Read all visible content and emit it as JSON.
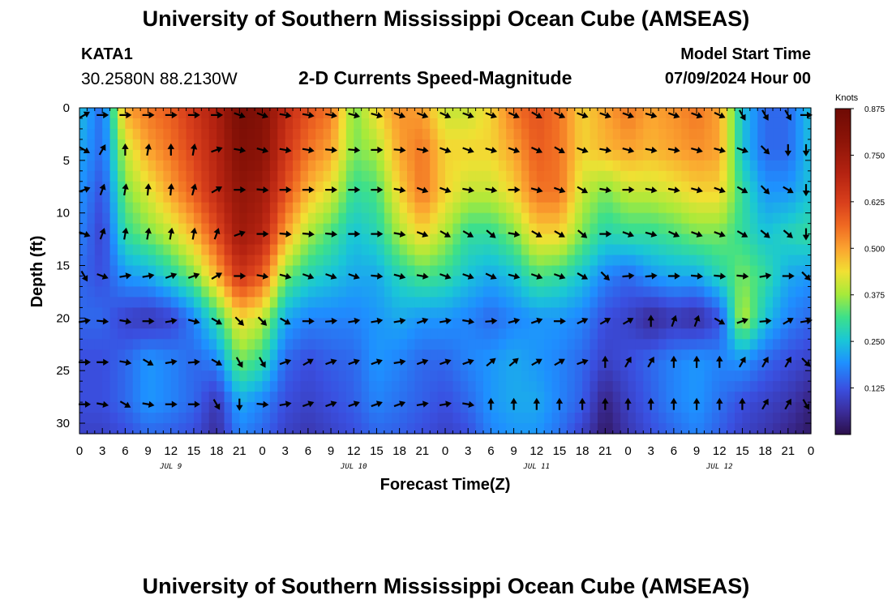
{
  "header": {
    "title": "University of Southern Mississippi Ocean Cube (AMSEAS)",
    "station": "KATA1",
    "coords": "30.2580N  88.2130W",
    "subtitle": "2-D Currents Speed-Magnitude",
    "model_start_label": "Model Start Time",
    "model_start_value": "07/09/2024 Hour 00"
  },
  "footer": {
    "title": "University of Southern Mississippi Ocean Cube (AMSEAS)"
  },
  "chart_data": {
    "type": "heatmap",
    "title": "2-D Currents Speed-Magnitude",
    "xlabel": "Forecast Time(Z)",
    "ylabel": "Depth (ft)",
    "x_range_hours": [
      0,
      96
    ],
    "y_range": [
      0,
      31
    ],
    "x_tick_labels": [
      "0",
      "3",
      "6",
      "9",
      "12",
      "15",
      "18",
      "21",
      "0",
      "3",
      "6",
      "9",
      "12",
      "15",
      "18",
      "21",
      "0",
      "3",
      "6",
      "9",
      "12",
      "15",
      "18",
      "21",
      "0",
      "3",
      "6",
      "9",
      "12",
      "15",
      "18",
      "21",
      "0"
    ],
    "y_ticks": [
      0,
      5,
      10,
      15,
      20,
      25,
      30
    ],
    "date_labels": [
      {
        "text": "JUL 9",
        "hour": 12
      },
      {
        "text": "JUL 10",
        "hour": 36
      },
      {
        "text": "JUL 11",
        "hour": 60
      },
      {
        "text": "JUL 12",
        "hour": 84
      }
    ],
    "colorbar": {
      "label": "Knots",
      "range": [
        0,
        0.875
      ],
      "ticks": [
        "0.875",
        "0.750",
        "0.625",
        "0.500",
        "0.375",
        "0.250",
        "0.125"
      ],
      "tick_values": [
        0.875,
        0.75,
        0.625,
        0.5,
        0.375,
        0.25,
        0.125
      ]
    },
    "arrow_depths": [
      0.3,
      4,
      7.8,
      12,
      16,
      20.3,
      24.2,
      28.2
    ],
    "arrow_hours": [
      0,
      3,
      6,
      9,
      12,
      15,
      18,
      21,
      24,
      27,
      30,
      33,
      36,
      39,
      42,
      45,
      48,
      51,
      54,
      57,
      60,
      63,
      66,
      69,
      72,
      75,
      78,
      81,
      84,
      87,
      90,
      93,
      96
    ],
    "speed_columns_hours": [
      0,
      3,
      6,
      9,
      12,
      15,
      18,
      21,
      24,
      27,
      30,
      33,
      36,
      39,
      42,
      45,
      48,
      51,
      54,
      57,
      60,
      63,
      66,
      69,
      72,
      75,
      78,
      81,
      84,
      87,
      90,
      93,
      96
    ],
    "speed_rows_depth": [
      0,
      4,
      8,
      12,
      16,
      20,
      24,
      28,
      31
    ],
    "speed": [
      [
        0.25,
        0.15,
        0.5,
        0.55,
        0.58,
        0.65,
        0.72,
        0.85,
        0.82,
        0.68,
        0.6,
        0.55,
        0.35,
        0.45,
        0.52,
        0.5,
        0.4,
        0.4,
        0.45,
        0.55,
        0.6,
        0.55,
        0.45,
        0.5,
        0.55,
        0.5,
        0.52,
        0.55,
        0.5,
        0.25,
        0.15,
        0.15,
        0.25
      ],
      [
        0.22,
        0.15,
        0.4,
        0.5,
        0.55,
        0.62,
        0.7,
        0.82,
        0.8,
        0.65,
        0.55,
        0.5,
        0.35,
        0.38,
        0.5,
        0.55,
        0.45,
        0.45,
        0.45,
        0.5,
        0.58,
        0.55,
        0.45,
        0.48,
        0.5,
        0.48,
        0.5,
        0.52,
        0.5,
        0.25,
        0.15,
        0.15,
        0.25
      ],
      [
        0.2,
        0.12,
        0.35,
        0.42,
        0.5,
        0.58,
        0.68,
        0.78,
        0.75,
        0.6,
        0.48,
        0.42,
        0.3,
        0.32,
        0.45,
        0.55,
        0.45,
        0.4,
        0.4,
        0.45,
        0.55,
        0.55,
        0.4,
        0.35,
        0.4,
        0.4,
        0.42,
        0.45,
        0.45,
        0.3,
        0.2,
        0.2,
        0.25
      ],
      [
        0.18,
        0.1,
        0.3,
        0.35,
        0.4,
        0.48,
        0.6,
        0.75,
        0.7,
        0.5,
        0.38,
        0.32,
        0.25,
        0.28,
        0.38,
        0.45,
        0.38,
        0.3,
        0.3,
        0.35,
        0.45,
        0.45,
        0.35,
        0.28,
        0.3,
        0.3,
        0.32,
        0.35,
        0.35,
        0.3,
        0.25,
        0.28,
        0.3
      ],
      [
        0.15,
        0.12,
        0.2,
        0.22,
        0.28,
        0.35,
        0.48,
        0.65,
        0.58,
        0.35,
        0.28,
        0.25,
        0.22,
        0.22,
        0.28,
        0.32,
        0.3,
        0.25,
        0.22,
        0.25,
        0.32,
        0.3,
        0.25,
        0.18,
        0.15,
        0.2,
        0.22,
        0.22,
        0.28,
        0.35,
        0.3,
        0.22,
        0.2
      ],
      [
        0.15,
        0.15,
        0.1,
        0.08,
        0.1,
        0.18,
        0.3,
        0.45,
        0.4,
        0.22,
        0.18,
        0.18,
        0.18,
        0.2,
        0.22,
        0.2,
        0.2,
        0.18,
        0.15,
        0.18,
        0.2,
        0.2,
        0.18,
        0.12,
        0.1,
        0.05,
        0.08,
        0.06,
        0.12,
        0.4,
        0.25,
        0.18,
        0.15
      ],
      [
        0.12,
        0.12,
        0.15,
        0.2,
        0.18,
        0.15,
        0.18,
        0.35,
        0.3,
        0.15,
        0.12,
        0.14,
        0.15,
        0.2,
        0.18,
        0.15,
        0.15,
        0.18,
        0.2,
        0.22,
        0.2,
        0.18,
        0.15,
        0.1,
        0.12,
        0.15,
        0.18,
        0.2,
        0.18,
        0.2,
        0.15,
        0.12,
        0.1
      ],
      [
        0.12,
        0.12,
        0.15,
        0.2,
        0.18,
        0.15,
        0.08,
        0.22,
        0.18,
        0.12,
        0.1,
        0.12,
        0.14,
        0.18,
        0.16,
        0.14,
        0.12,
        0.15,
        0.2,
        0.22,
        0.22,
        0.18,
        0.14,
        0.04,
        0.1,
        0.14,
        0.18,
        0.2,
        0.16,
        0.12,
        0.1,
        0.08,
        0.04
      ],
      [
        0.1,
        0.1,
        0.12,
        0.15,
        0.14,
        0.12,
        0.06,
        0.18,
        0.15,
        0.1,
        0.08,
        0.1,
        0.12,
        0.15,
        0.14,
        0.12,
        0.1,
        0.12,
        0.18,
        0.2,
        0.2,
        0.16,
        0.1,
        0.02,
        0.08,
        0.12,
        0.15,
        0.18,
        0.14,
        0.1,
        0.08,
        0.05,
        0.02
      ]
    ],
    "arrows_deg_per_row": [
      [
        -30,
        0,
        0,
        0,
        0,
        0,
        0,
        20,
        20,
        10,
        10,
        10,
        15,
        15,
        20,
        20,
        25,
        20,
        20,
        25,
        30,
        25,
        20,
        20,
        20,
        15,
        20,
        20,
        25,
        60,
        60,
        60,
        0
      ],
      [
        30,
        -60,
        -90,
        -80,
        -90,
        -80,
        -20,
        10,
        15,
        10,
        10,
        5,
        5,
        0,
        5,
        10,
        20,
        20,
        15,
        20,
        25,
        30,
        20,
        10,
        15,
        10,
        10,
        15,
        15,
        20,
        45,
        90,
        90
      ],
      [
        -20,
        -70,
        -80,
        -85,
        -85,
        -75,
        -30,
        0,
        5,
        0,
        0,
        0,
        0,
        0,
        10,
        20,
        20,
        10,
        10,
        0,
        15,
        20,
        30,
        10,
        0,
        10,
        10,
        15,
        20,
        30,
        45,
        30,
        90
      ],
      [
        20,
        -70,
        -80,
        -80,
        -80,
        -80,
        -70,
        -20,
        0,
        5,
        5,
        5,
        0,
        0,
        10,
        20,
        30,
        30,
        40,
        10,
        30,
        30,
        40,
        0,
        20,
        15,
        25,
        20,
        20,
        30,
        40,
        40,
        90
      ],
      [
        60,
        20,
        -10,
        -10,
        -20,
        -20,
        -30,
        0,
        10,
        15,
        20,
        20,
        20,
        5,
        15,
        10,
        20,
        20,
        25,
        15,
        20,
        20,
        30,
        45,
        -5,
        -5,
        0,
        5,
        5,
        5,
        -10,
        0,
        45
      ],
      [
        -10,
        5,
        10,
        0,
        -10,
        15,
        30,
        45,
        45,
        30,
        0,
        -5,
        -10,
        -10,
        -10,
        -20,
        -10,
        10,
        -5,
        -15,
        -20,
        0,
        -25,
        -30,
        -30,
        -90,
        -70,
        -70,
        30,
        -20,
        -5,
        -30,
        -10
      ],
      [
        0,
        0,
        10,
        30,
        -10,
        -5,
        30,
        60,
        60,
        -20,
        -30,
        -20,
        -20,
        -20,
        -10,
        -20,
        -20,
        -20,
        -40,
        -40,
        -30,
        -30,
        -20,
        -90,
        -60,
        -60,
        -90,
        -90,
        -90,
        -60,
        -60,
        -60,
        45
      ],
      [
        0,
        10,
        30,
        10,
        0,
        0,
        60,
        90,
        5,
        -10,
        -20,
        -20,
        -20,
        -20,
        -20,
        -10,
        -10,
        10,
        -90,
        -90,
        -90,
        -90,
        -90,
        -90,
        -90,
        -90,
        -90,
        -90,
        -90,
        -90,
        -60,
        -60,
        60
      ]
    ]
  }
}
